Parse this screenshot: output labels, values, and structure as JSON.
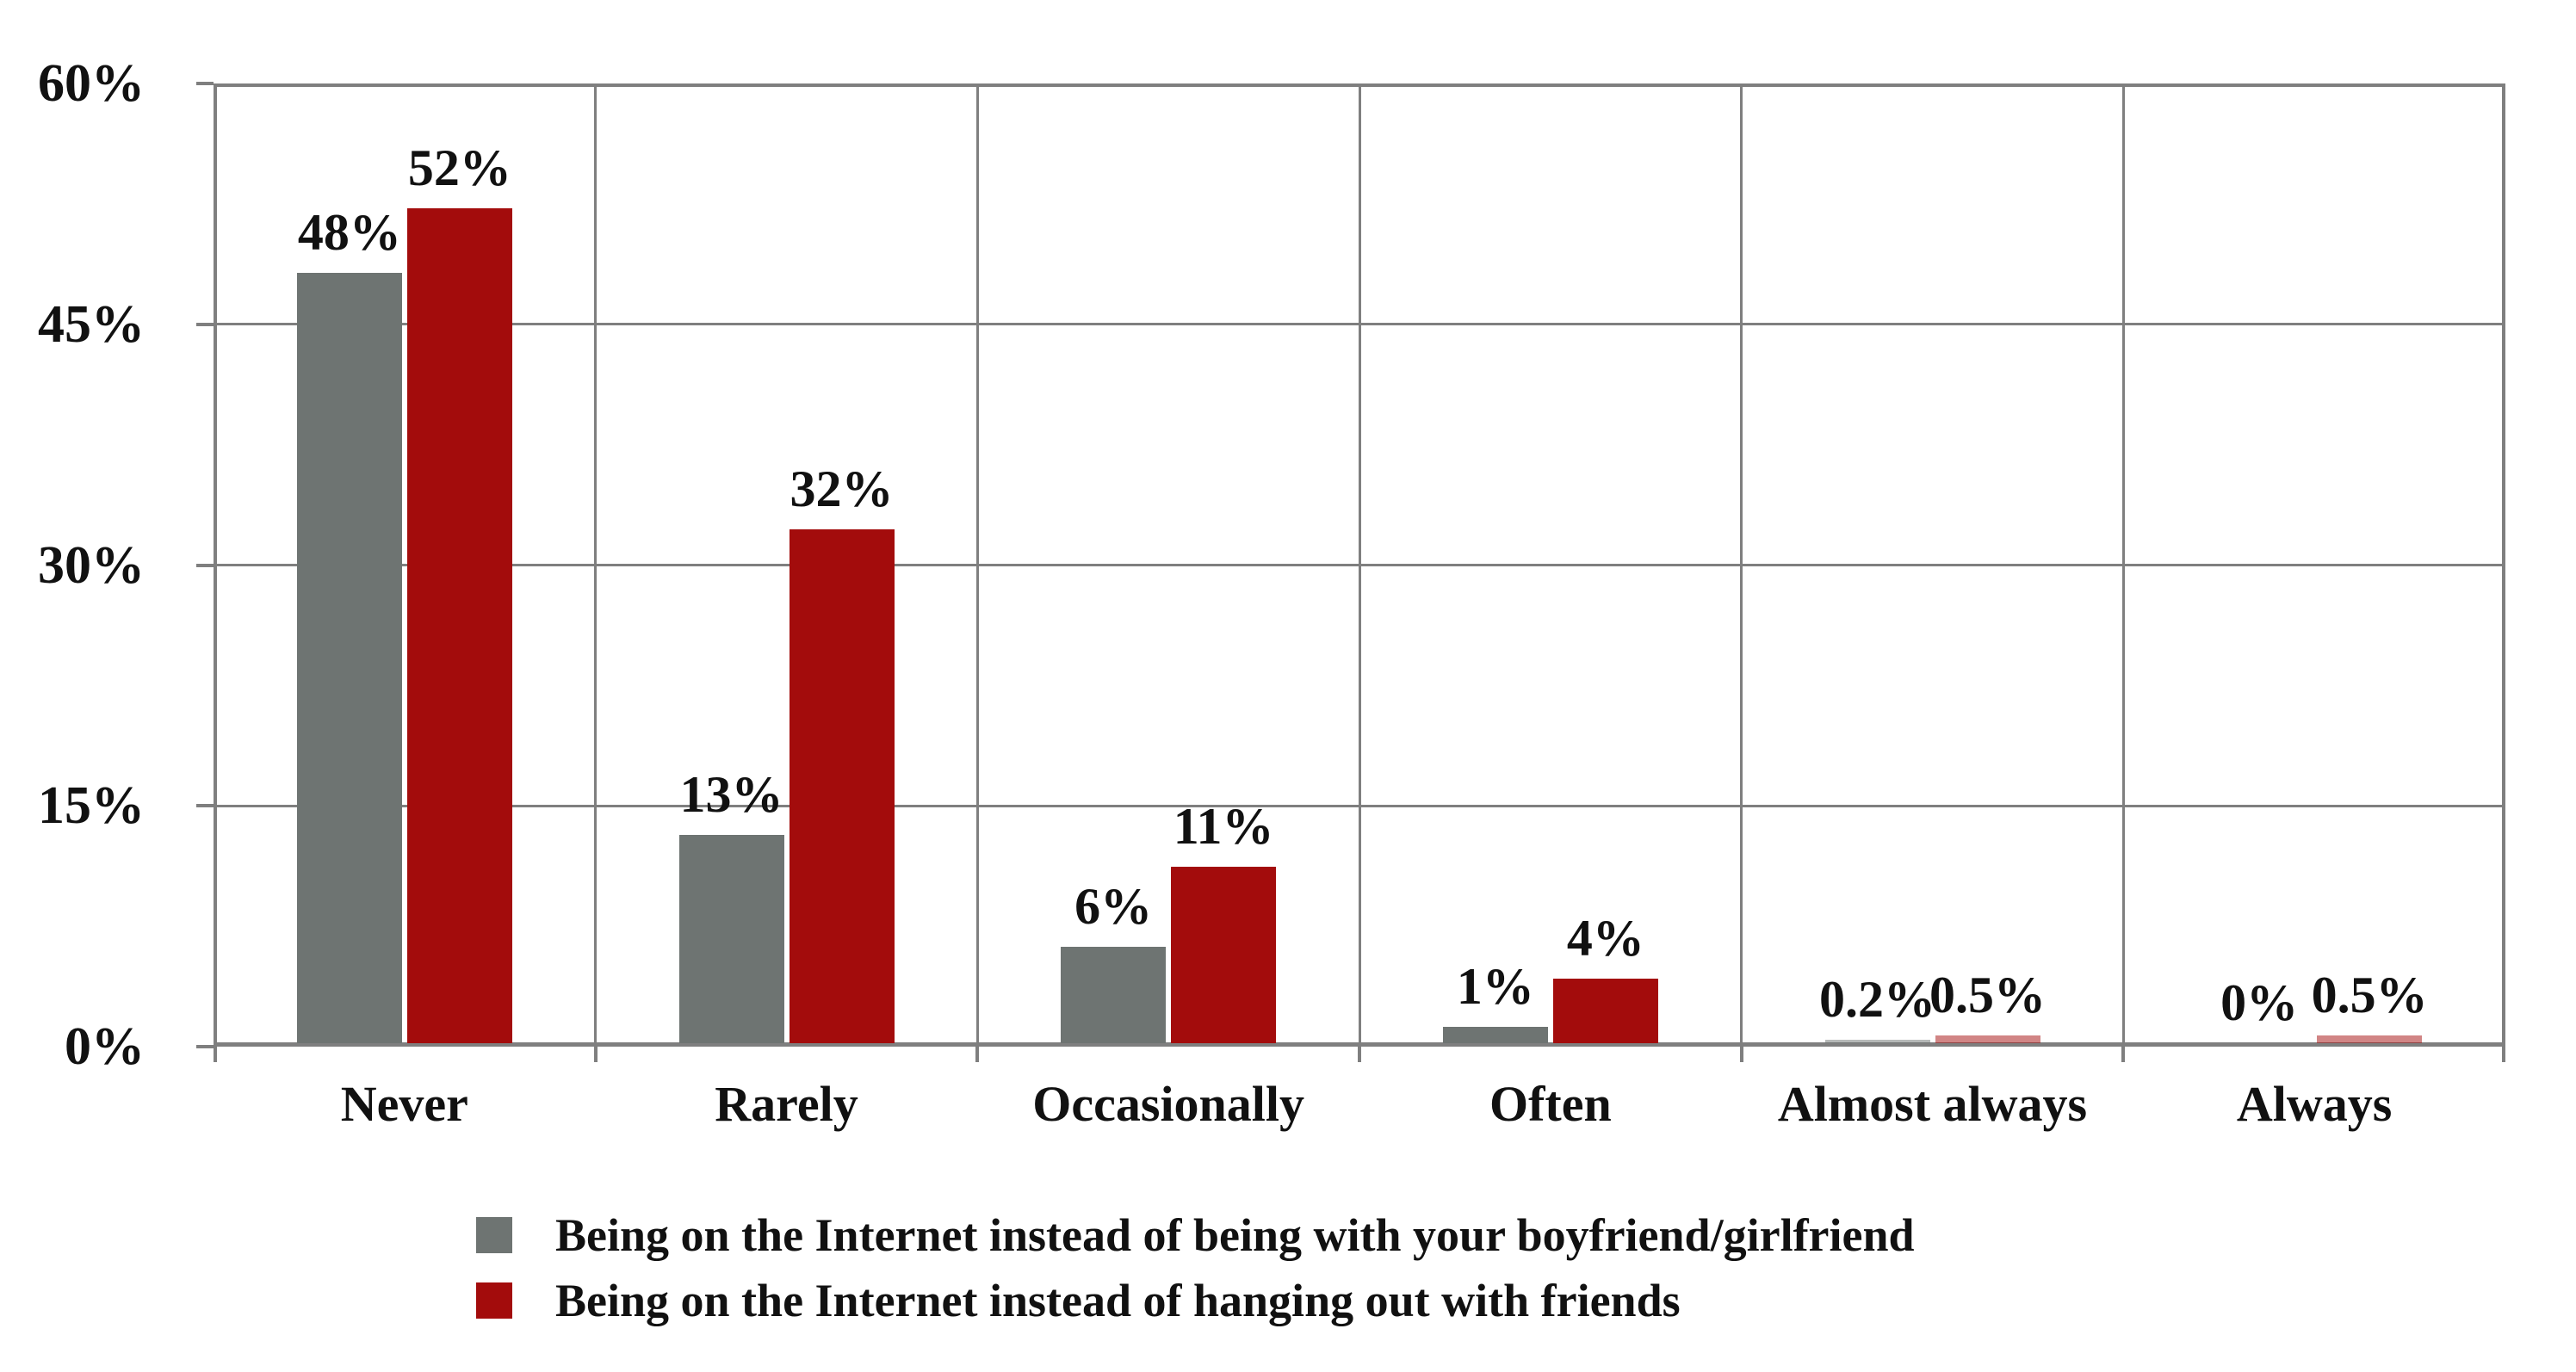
{
  "chart_data": {
    "type": "bar",
    "title": "",
    "xlabel": "",
    "ylabel": "",
    "categories": [
      "Never",
      "Rarely",
      "Occasionally",
      "Often",
      "Almost always",
      "Always"
    ],
    "series": [
      {
        "name": "Being on the Internet instead of being with your boyfriend/girlfriend",
        "color": "#6e7472",
        "values": [
          48,
          13,
          6,
          1,
          0.2,
          0
        ],
        "labels": [
          "48%",
          "13%",
          "6%",
          "1%",
          "0.2%",
          "0%"
        ]
      },
      {
        "name": "Being on the Internet instead of hanging out with friends",
        "color": "#a30c0c",
        "values": [
          52,
          32,
          11,
          4,
          0.5,
          0.5
        ],
        "labels": [
          "52%",
          "32%",
          "11%",
          "4%",
          "0.5%",
          "0.5%"
        ]
      }
    ],
    "ylim": [
      0,
      60
    ],
    "y_ticks": [
      {
        "value": 0,
        "label": "0%"
      },
      {
        "value": 15,
        "label": "15%"
      },
      {
        "value": 30,
        "label": "30%"
      },
      {
        "value": 45,
        "label": "45%"
      },
      {
        "value": 60,
        "label": "60%"
      }
    ],
    "grid": true,
    "legend_position": "bottom",
    "axis_color": "#7f7f7f",
    "text_color": "#111111",
    "background_color": "#ffffff"
  }
}
